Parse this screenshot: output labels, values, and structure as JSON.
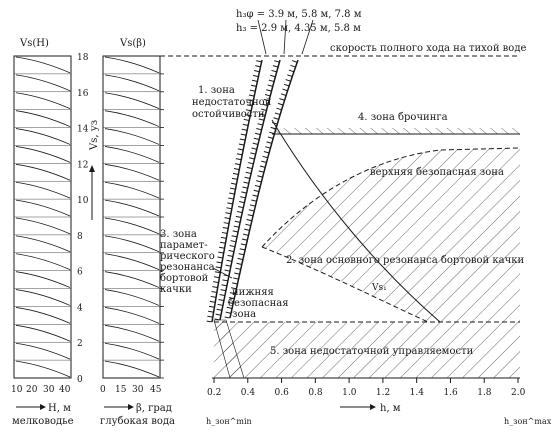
{
  "panel_h": {
    "title": "Vs(H)",
    "ticks_x": [
      "10",
      "20",
      "30",
      "40"
    ],
    "axis_label": "H, м",
    "caption": "мелководье"
  },
  "panel_beta": {
    "title": "Vs(β)",
    "ticks_x": [
      "0",
      "15",
      "30",
      "45"
    ],
    "axis_label": "β, град",
    "caption": "глубокая вода"
  },
  "speed_axis": {
    "label": "Vs, уз",
    "ticks": [
      "0",
      "2",
      "4",
      "6",
      "8",
      "10",
      "12",
      "14",
      "16",
      "18"
    ]
  },
  "main": {
    "legend_h3_eq": "h₃φ = 3.9 м,  5.8 м,  7.8 м",
    "legend_h3": "h₃ = 2.9 м,  4.35 м,  5.8 м",
    "full_speed_label": "скорость полного хода на тихой воде",
    "x_ticks": [
      "0.2",
      "0.4",
      "0.6",
      "0.8",
      "1.0",
      "1.2",
      "1.4",
      "1.6",
      "1.8",
      "2.0"
    ],
    "x_axis_label": "h, м",
    "hmin_label": "h_зон^min",
    "hmax_label": "h_зон^max",
    "vs_curve_label": "Vs₁",
    "zones": {
      "z1": [
        "1. зона",
        "недостаточной",
        "остойчивости"
      ],
      "z2": "2. зона основного резонанса бортовой качки",
      "z3": [
        "3. зона",
        "парамет-",
        "рического",
        "резонанса",
        "бортовой",
        "качки"
      ],
      "z4": "4. зона брочинга",
      "z5": "5. зона недостаточной управляемости",
      "upper_safe": "верхняя безопасная зона",
      "lower_safe": [
        "нижняя",
        "безопасная",
        "зона"
      ]
    }
  }
}
